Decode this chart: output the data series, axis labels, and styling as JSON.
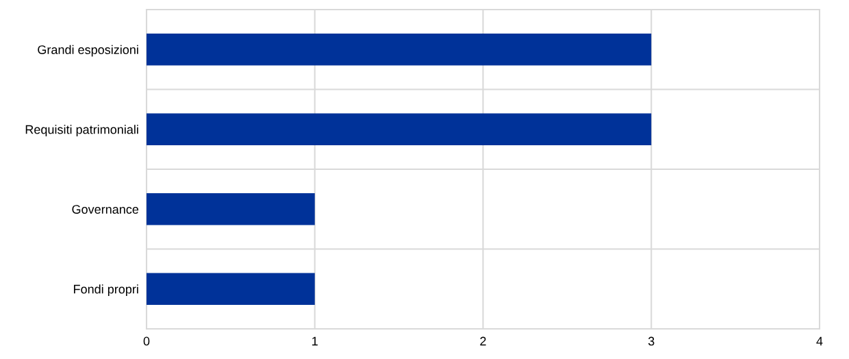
{
  "chart_data": {
    "type": "bar",
    "orientation": "horizontal",
    "categories": [
      "Grandi esposizioni",
      "Requisiti patrimoniali",
      "Governance",
      "Fondi propri"
    ],
    "values": [
      3,
      3,
      1,
      1
    ],
    "color": "#003299",
    "xlim": [
      0,
      4
    ],
    "xticks": [
      0,
      1,
      2,
      3,
      4
    ],
    "grid": true,
    "legend": false
  }
}
